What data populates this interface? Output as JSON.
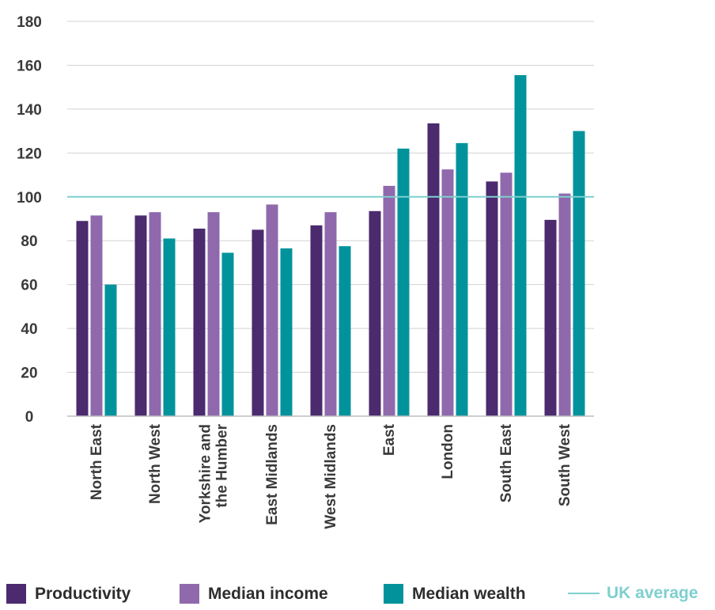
{
  "chart_data": {
    "type": "bar",
    "categories": [
      [
        "North East"
      ],
      [
        "North West"
      ],
      [
        "Yorkshire and",
        "the Humber"
      ],
      [
        "East Midlands"
      ],
      [
        "West Midlands"
      ],
      [
        "East"
      ],
      [
        "London"
      ],
      [
        "South East"
      ],
      [
        "South West"
      ]
    ],
    "series": [
      {
        "name": "Productivity",
        "color": "#4b2a6e",
        "values": [
          89,
          91.5,
          85.5,
          85,
          87,
          93.5,
          133.5,
          107,
          89.5
        ]
      },
      {
        "name": "Median income",
        "color": "#8f69ac",
        "values": [
          91.5,
          93,
          93,
          96.5,
          93,
          105,
          112.5,
          111,
          101.5
        ]
      },
      {
        "name": "Median wealth",
        "color": "#00939c",
        "values": [
          60,
          81,
          74.5,
          76.5,
          77.5,
          122,
          124.5,
          155.5,
          130
        ]
      }
    ],
    "reference_line": {
      "name": "UK average",
      "value": 100,
      "color": "#7fcfcf"
    },
    "ylim": [
      0,
      180
    ],
    "yticks": [
      0,
      20,
      40,
      60,
      80,
      100,
      120,
      140,
      160,
      180
    ],
    "grid": true,
    "legend_position": "bottom",
    "xlabel": "",
    "ylabel": "",
    "title": ""
  }
}
